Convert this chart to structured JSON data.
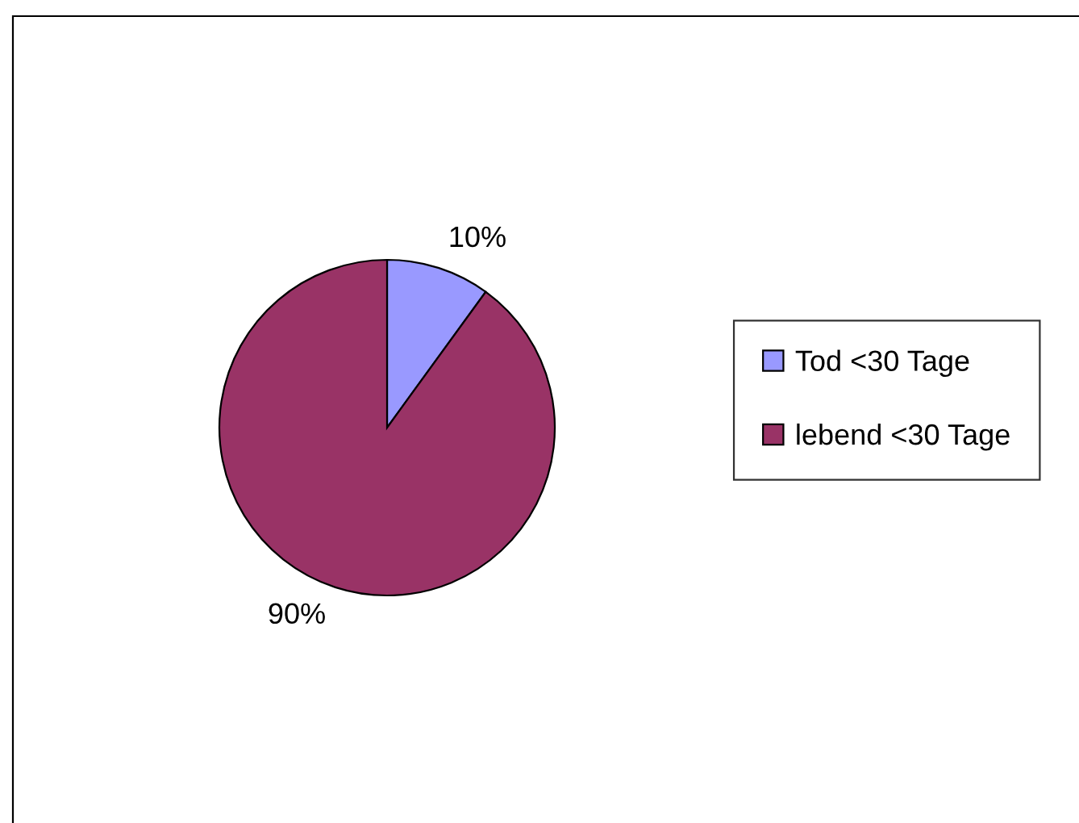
{
  "chart_data": {
    "type": "pie",
    "categories": [
      "Tod <30 Tage",
      "lebend <30 Tage"
    ],
    "values": [
      10,
      90
    ],
    "colors": [
      "#9999ff",
      "#993366"
    ],
    "value_labels": [
      "10%",
      "90%"
    ],
    "legend": "right"
  }
}
